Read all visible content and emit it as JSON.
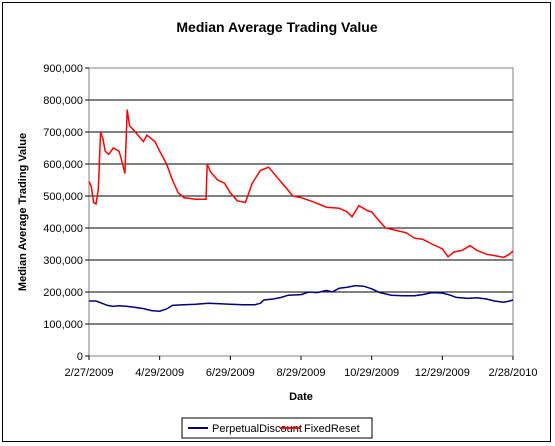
{
  "chart_data": {
    "type": "line",
    "title": "Median Average Trading Value",
    "xlabel": "Date",
    "ylabel": "Median Average Trading Value",
    "x_tick_labels": [
      "2/27/2009",
      "4/29/2009",
      "6/29/2009",
      "8/29/2009",
      "10/29/2009",
      "12/29/2009",
      "2/28/2010"
    ],
    "x_ticks": [
      "2009-02-27",
      "2009-04-29",
      "2009-06-29",
      "2009-08-29",
      "2009-10-29",
      "2009-12-29",
      "2010-02-28"
    ],
    "xlim": [
      "2009-02-27",
      "2010-02-28"
    ],
    "y_tick_labels": [
      "0",
      "100,000",
      "200,000",
      "300,000",
      "400,000",
      "500,000",
      "600,000",
      "700,000",
      "800,000",
      "900,000"
    ],
    "ylim": [
      0,
      900000
    ],
    "y_step": 100000,
    "grid": "horizontal",
    "legend": "bottom",
    "series": [
      {
        "name": "PerpetualDiscount",
        "color": "#000080",
        "points": [
          [
            "2009-02-27",
            172000
          ],
          [
            "2009-03-05",
            172000
          ],
          [
            "2009-03-10",
            165000
          ],
          [
            "2009-03-15",
            158000
          ],
          [
            "2009-03-20",
            155000
          ],
          [
            "2009-03-25",
            157000
          ],
          [
            "2009-04-01",
            155000
          ],
          [
            "2009-04-08",
            152000
          ],
          [
            "2009-04-15",
            148000
          ],
          [
            "2009-04-22",
            142000
          ],
          [
            "2009-04-29",
            140000
          ],
          [
            "2009-05-05",
            147000
          ],
          [
            "2009-05-10",
            158000
          ],
          [
            "2009-05-20",
            160000
          ],
          [
            "2009-05-30",
            162000
          ],
          [
            "2009-06-10",
            165000
          ],
          [
            "2009-06-20",
            163000
          ],
          [
            "2009-06-29",
            162000
          ],
          [
            "2009-07-10",
            160000
          ],
          [
            "2009-07-20",
            160000
          ],
          [
            "2009-07-25",
            165000
          ],
          [
            "2009-07-28",
            175000
          ],
          [
            "2009-08-05",
            178000
          ],
          [
            "2009-08-12",
            183000
          ],
          [
            "2009-08-18",
            190000
          ],
          [
            "2009-08-29",
            192000
          ],
          [
            "2009-09-05",
            200000
          ],
          [
            "2009-09-12",
            198000
          ],
          [
            "2009-09-20",
            205000
          ],
          [
            "2009-09-25",
            200000
          ],
          [
            "2009-10-01",
            212000
          ],
          [
            "2009-10-08",
            215000
          ],
          [
            "2009-10-15",
            220000
          ],
          [
            "2009-10-22",
            218000
          ],
          [
            "2009-10-29",
            210000
          ],
          [
            "2009-11-05",
            198000
          ],
          [
            "2009-11-15",
            190000
          ],
          [
            "2009-11-25",
            188000
          ],
          [
            "2009-12-05",
            188000
          ],
          [
            "2009-12-12",
            192000
          ],
          [
            "2009-12-20",
            198000
          ],
          [
            "2009-12-29",
            197000
          ],
          [
            "2010-01-05",
            190000
          ],
          [
            "2010-01-10",
            183000
          ],
          [
            "2010-01-20",
            180000
          ],
          [
            "2010-01-28",
            182000
          ],
          [
            "2010-02-05",
            178000
          ],
          [
            "2010-02-12",
            172000
          ],
          [
            "2010-02-20",
            168000
          ],
          [
            "2010-02-25",
            172000
          ],
          [
            "2010-02-28",
            175000
          ]
        ]
      },
      {
        "name": "FixedReset",
        "color": "#ff0000",
        "points": [
          [
            "2009-02-27",
            545000
          ],
          [
            "2009-03-01",
            530000
          ],
          [
            "2009-03-03",
            480000
          ],
          [
            "2009-03-05",
            475000
          ],
          [
            "2009-03-07",
            520000
          ],
          [
            "2009-03-09",
            700000
          ],
          [
            "2009-03-11",
            680000
          ],
          [
            "2009-03-13",
            640000
          ],
          [
            "2009-03-16",
            630000
          ],
          [
            "2009-03-20",
            650000
          ],
          [
            "2009-03-25",
            640000
          ],
          [
            "2009-03-28",
            600000
          ],
          [
            "2009-03-30",
            570000
          ],
          [
            "2009-04-01",
            770000
          ],
          [
            "2009-04-03",
            720000
          ],
          [
            "2009-04-08",
            700000
          ],
          [
            "2009-04-15",
            670000
          ],
          [
            "2009-04-18",
            690000
          ],
          [
            "2009-04-25",
            670000
          ],
          [
            "2009-04-29",
            640000
          ],
          [
            "2009-05-05",
            600000
          ],
          [
            "2009-05-10",
            550000
          ],
          [
            "2009-05-15",
            510000
          ],
          [
            "2009-05-20",
            495000
          ],
          [
            "2009-05-30",
            490000
          ],
          [
            "2009-06-08",
            490000
          ],
          [
            "2009-06-09",
            600000
          ],
          [
            "2009-06-12",
            575000
          ],
          [
            "2009-06-18",
            550000
          ],
          [
            "2009-06-24",
            540000
          ],
          [
            "2009-06-29",
            510000
          ],
          [
            "2009-07-05",
            485000
          ],
          [
            "2009-07-12",
            480000
          ],
          [
            "2009-07-18",
            540000
          ],
          [
            "2009-07-25",
            580000
          ],
          [
            "2009-08-01",
            590000
          ],
          [
            "2009-08-08",
            560000
          ],
          [
            "2009-08-15",
            530000
          ],
          [
            "2009-08-22",
            500000
          ],
          [
            "2009-08-29",
            495000
          ],
          [
            "2009-09-10",
            480000
          ],
          [
            "2009-09-20",
            465000
          ],
          [
            "2009-10-01",
            462000
          ],
          [
            "2009-10-08",
            450000
          ],
          [
            "2009-10-12",
            435000
          ],
          [
            "2009-10-18",
            470000
          ],
          [
            "2009-10-25",
            455000
          ],
          [
            "2009-10-29",
            450000
          ],
          [
            "2009-11-05",
            420000
          ],
          [
            "2009-11-10",
            400000
          ],
          [
            "2009-11-20",
            392000
          ],
          [
            "2009-11-28",
            385000
          ],
          [
            "2009-12-05",
            368000
          ],
          [
            "2009-12-12",
            365000
          ],
          [
            "2009-12-20",
            350000
          ],
          [
            "2009-12-29",
            335000
          ],
          [
            "2010-01-03",
            310000
          ],
          [
            "2010-01-08",
            325000
          ],
          [
            "2010-01-15",
            330000
          ],
          [
            "2010-01-22",
            345000
          ],
          [
            "2010-01-28",
            330000
          ],
          [
            "2010-02-05",
            318000
          ],
          [
            "2010-02-15",
            312000
          ],
          [
            "2010-02-20",
            308000
          ],
          [
            "2010-02-25",
            318000
          ],
          [
            "2010-02-28",
            328000
          ]
        ]
      }
    ]
  }
}
